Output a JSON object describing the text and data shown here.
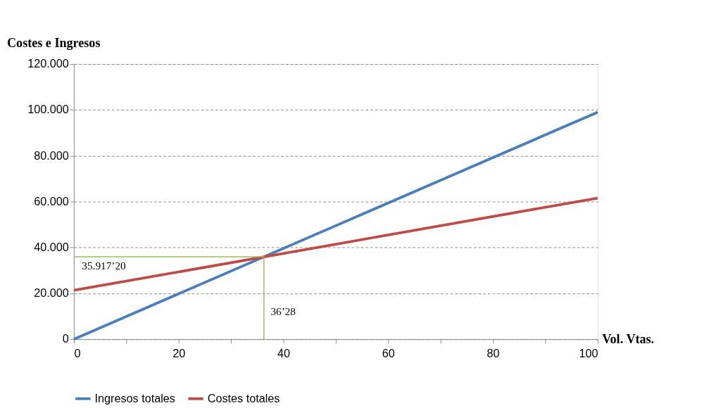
{
  "chart_data": {
    "type": "line",
    "xlabel": "Vol. Vtas.",
    "ylabel": "Costes e Ingresos",
    "xlim": [
      0,
      100
    ],
    "ylim": [
      0,
      120000
    ],
    "xticks": [
      0,
      {
        "value": 10,
        "label": null
      },
      20,
      {
        "value": 30,
        "label": null
      },
      40,
      {
        "value": 50,
        "label": null
      },
      60,
      {
        "value": 70,
        "label": null
      },
      80,
      {
        "value": 90,
        "label": null
      },
      100
    ],
    "yticks": [
      {
        "value": 0,
        "label": "0"
      },
      {
        "value": 20000,
        "label": "20.000"
      },
      {
        "value": 40000,
        "label": "40.000"
      },
      {
        "value": 60000,
        "label": "60.000"
      },
      {
        "value": 80000,
        "label": "80.000"
      },
      {
        "value": 100000,
        "label": "100.000"
      },
      {
        "value": 120000,
        "label": "120.000"
      }
    ],
    "grid": "y",
    "legend": "bottom",
    "line_style": "solid",
    "marker": "none",
    "series": [
      {
        "name": "Ingresos totales",
        "color": "#4a7ebb",
        "x": [
          0,
          100
        ],
        "values": [
          0,
          99000
        ]
      },
      {
        "name": "Costes totales",
        "color": "#be4b48",
        "x": [
          0,
          100
        ],
        "values": [
          21300,
          61540
        ]
      },
      {
        "color": "#9bbb59",
        "x": [
          0,
          36.28,
          36.28
        ],
        "values": [
          35917.2,
          35917.2,
          0
        ]
      }
    ],
    "annotations": [
      {
        "text": "35.917’20",
        "y": 35917.2
      },
      {
        "text": "36’28",
        "x": 36.28
      }
    ]
  }
}
